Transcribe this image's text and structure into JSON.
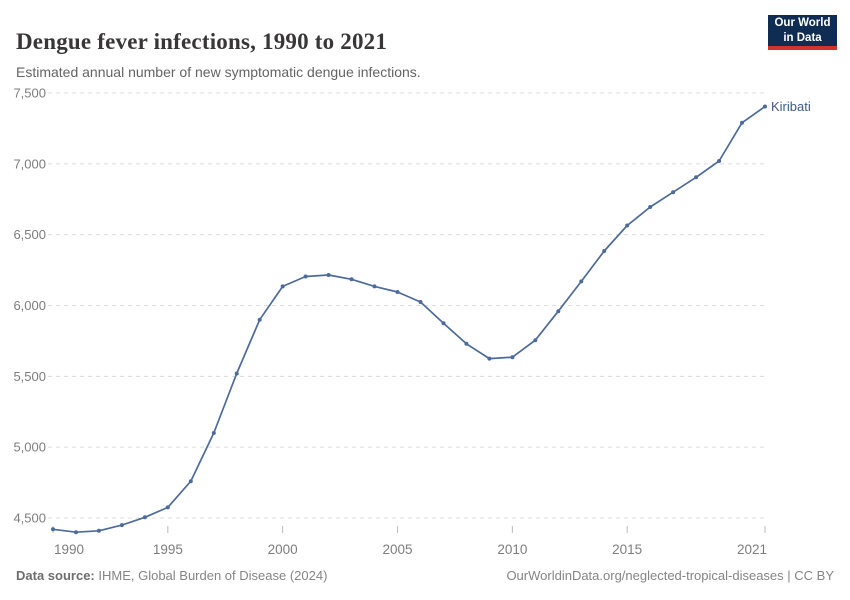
{
  "logo": {
    "line1": "Our World",
    "line2": "in Data"
  },
  "chart_data": {
    "type": "line",
    "title": "Dengue fever infections, 1990 to 2021",
    "subtitle": "Estimated annual number of new symptomatic dengue infections.",
    "entity_label": "Kiribati",
    "xlabel": "",
    "ylabel": "",
    "grid": true,
    "legend_position": "end-of-line-label",
    "xlim": [
      1990,
      2021
    ],
    "ylim": [
      4500,
      7500
    ],
    "x": [
      1990,
      1991,
      1992,
      1993,
      1994,
      1995,
      1996,
      1997,
      1998,
      1999,
      2000,
      2001,
      2002,
      2003,
      2004,
      2005,
      2006,
      2007,
      2008,
      2009,
      2010,
      2011,
      2012,
      2013,
      2014,
      2015,
      2016,
      2017,
      2018,
      2019,
      2020,
      2021
    ],
    "series": [
      {
        "name": "Kiribati",
        "values": [
          4420,
          4400,
          4410,
          4450,
          4505,
          4575,
          4760,
          5100,
          5520,
          5900,
          6135,
          6205,
          6215,
          6185,
          6135,
          6095,
          6025,
          5875,
          5730,
          5625,
          5635,
          5755,
          5960,
          6170,
          6385,
          6565,
          6695,
          6800,
          6905,
          7020,
          7290,
          7405
        ]
      }
    ],
    "y_ticks": [
      {
        "value": 4500,
        "label": "4,500"
      },
      {
        "value": 5000,
        "label": "5,000"
      },
      {
        "value": 5500,
        "label": "5,500"
      },
      {
        "value": 6000,
        "label": "6,000"
      },
      {
        "value": 6500,
        "label": "6,500"
      },
      {
        "value": 7000,
        "label": "7,000"
      },
      {
        "value": 7500,
        "label": "7,500"
      }
    ],
    "x_ticks": [
      {
        "value": 1990,
        "label": "1990"
      },
      {
        "value": 1995,
        "label": "1995"
      },
      {
        "value": 2000,
        "label": "2000"
      },
      {
        "value": 2005,
        "label": "2005"
      },
      {
        "value": 2010,
        "label": "2010"
      },
      {
        "value": 2015,
        "label": "2015"
      },
      {
        "value": 2021,
        "label": "2021"
      }
    ],
    "line_color": "#4C6A9C",
    "label_color": "#3d5c87",
    "grid_color": "#dcdcdc",
    "axis_text_color": "#7d7d7d"
  },
  "footer": {
    "source_label": "Data source:",
    "source_text": " IHME, Global Burden of Disease (2024)",
    "link_text": "OurWorldinData.org/neglected-tropical-diseases | CC BY"
  }
}
